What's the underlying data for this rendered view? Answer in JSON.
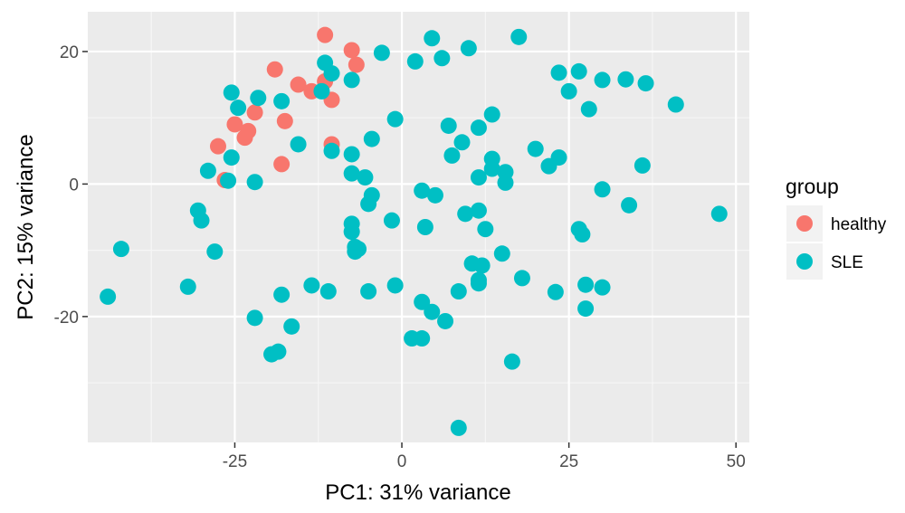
{
  "chart_data": {
    "type": "scatter",
    "xlabel": "PC1: 31% variance",
    "ylabel": "PC2: 15% variance",
    "xlim": [
      -47,
      52
    ],
    "ylim": [
      -39,
      26
    ],
    "x_ticks": [
      -25,
      0,
      25,
      50
    ],
    "x_tick_labels": [
      "-25",
      "0",
      "25",
      "50"
    ],
    "y_ticks": [
      -20,
      0,
      20
    ],
    "y_tick_labels": [
      "-20",
      "0",
      "20"
    ],
    "grid": true,
    "legend": {
      "title": "group",
      "position": "right"
    },
    "series": [
      {
        "name": "healthy",
        "color": "#F8766D",
        "points": [
          [
            -11.5,
            22.5
          ],
          [
            -7.5,
            20.2
          ],
          [
            -6.8,
            18
          ],
          [
            -19,
            17.3
          ],
          [
            -15.5,
            15
          ],
          [
            -13.5,
            14
          ],
          [
            -11.5,
            15.5
          ],
          [
            -10.5,
            12.7
          ],
          [
            -22,
            10.8
          ],
          [
            -25,
            9
          ],
          [
            -17.5,
            9.5
          ],
          [
            -23,
            8
          ],
          [
            -23.5,
            7
          ],
          [
            -27.5,
            5.7
          ],
          [
            -10.5,
            6
          ],
          [
            -18,
            3
          ],
          [
            -26.5,
            0.6
          ]
        ]
      },
      {
        "name": "SLE",
        "color": "#00BFC4",
        "points": [
          [
            4.5,
            22
          ],
          [
            17.5,
            22.2
          ],
          [
            10,
            20.5
          ],
          [
            -3,
            19.8
          ],
          [
            2,
            18.5
          ],
          [
            6,
            19
          ],
          [
            -11.5,
            18.3
          ],
          [
            -10.5,
            16.7
          ],
          [
            -7.5,
            15.7
          ],
          [
            23.5,
            16.8
          ],
          [
            26.5,
            17
          ],
          [
            30,
            15.7
          ],
          [
            33.5,
            15.8
          ],
          [
            36.5,
            15.2
          ],
          [
            25,
            14
          ],
          [
            -25.5,
            13.8
          ],
          [
            -21.5,
            13
          ],
          [
            -18,
            12.5
          ],
          [
            -12,
            14
          ],
          [
            -24.5,
            11.5
          ],
          [
            28,
            11.3
          ],
          [
            41,
            12
          ],
          [
            -1,
            9.8
          ],
          [
            13.5,
            10.5
          ],
          [
            7,
            8.8
          ],
          [
            11.5,
            8.5
          ],
          [
            9,
            6.3
          ],
          [
            -4.5,
            6.8
          ],
          [
            -15.5,
            6
          ],
          [
            -10.5,
            5
          ],
          [
            -7.5,
            4.5
          ],
          [
            7.5,
            4.3
          ],
          [
            20,
            5.3
          ],
          [
            23.5,
            4
          ],
          [
            13.5,
            3.8
          ],
          [
            22,
            2.7
          ],
          [
            36,
            2.8
          ],
          [
            -25.5,
            4
          ],
          [
            -29,
            2
          ],
          [
            -7.5,
            1.6
          ],
          [
            -5.5,
            1
          ],
          [
            11.5,
            1
          ],
          [
            13.5,
            2.3
          ],
          [
            15.5,
            1.8
          ],
          [
            15.5,
            0.2
          ],
          [
            -26,
            0.5
          ],
          [
            -22,
            0.3
          ],
          [
            3,
            -1
          ],
          [
            5,
            -1.7
          ],
          [
            -4.5,
            -1.7
          ],
          [
            -5,
            -3
          ],
          [
            30,
            -0.8
          ],
          [
            -30.5,
            -4
          ],
          [
            -30,
            -5.5
          ],
          [
            -1.5,
            -5.5
          ],
          [
            9.5,
            -4.5
          ],
          [
            11.5,
            -4
          ],
          [
            12.5,
            -6.8
          ],
          [
            3.5,
            -6.5
          ],
          [
            -7.5,
            -6
          ],
          [
            -7.5,
            -7.2
          ],
          [
            -7,
            -9.5
          ],
          [
            -6.5,
            -9.8
          ],
          [
            -7,
            -10.2
          ],
          [
            26.5,
            -6.8
          ],
          [
            27,
            -7.6
          ],
          [
            34,
            -3.2
          ],
          [
            47.5,
            -4.5
          ],
          [
            -42,
            -9.8
          ],
          [
            -28,
            -10.2
          ],
          [
            15,
            -10.5
          ],
          [
            10.5,
            -12
          ],
          [
            12,
            -12.3
          ],
          [
            18,
            -14.2
          ],
          [
            11.5,
            -14.5
          ],
          [
            11.5,
            -15
          ],
          [
            27.5,
            -15.2
          ],
          [
            30,
            -15.6
          ],
          [
            -32,
            -15.5
          ],
          [
            -13.5,
            -15.3
          ],
          [
            -11,
            -16.2
          ],
          [
            -5,
            -16.2
          ],
          [
            -1,
            -15.3
          ],
          [
            8.5,
            -16.2
          ],
          [
            23,
            -16.3
          ],
          [
            -18,
            -16.7
          ],
          [
            3,
            -17.8
          ],
          [
            4.5,
            -19.3
          ],
          [
            27.5,
            -18.8
          ],
          [
            -44,
            -17
          ],
          [
            -22,
            -20.2
          ],
          [
            -16.5,
            -21.5
          ],
          [
            6.5,
            -20.7
          ],
          [
            1.5,
            -23.3
          ],
          [
            3,
            -23.3
          ],
          [
            -19.5,
            -25.7
          ],
          [
            -18.5,
            -25.3
          ],
          [
            16.5,
            -26.8
          ],
          [
            8.5,
            -36.8
          ]
        ]
      }
    ]
  }
}
